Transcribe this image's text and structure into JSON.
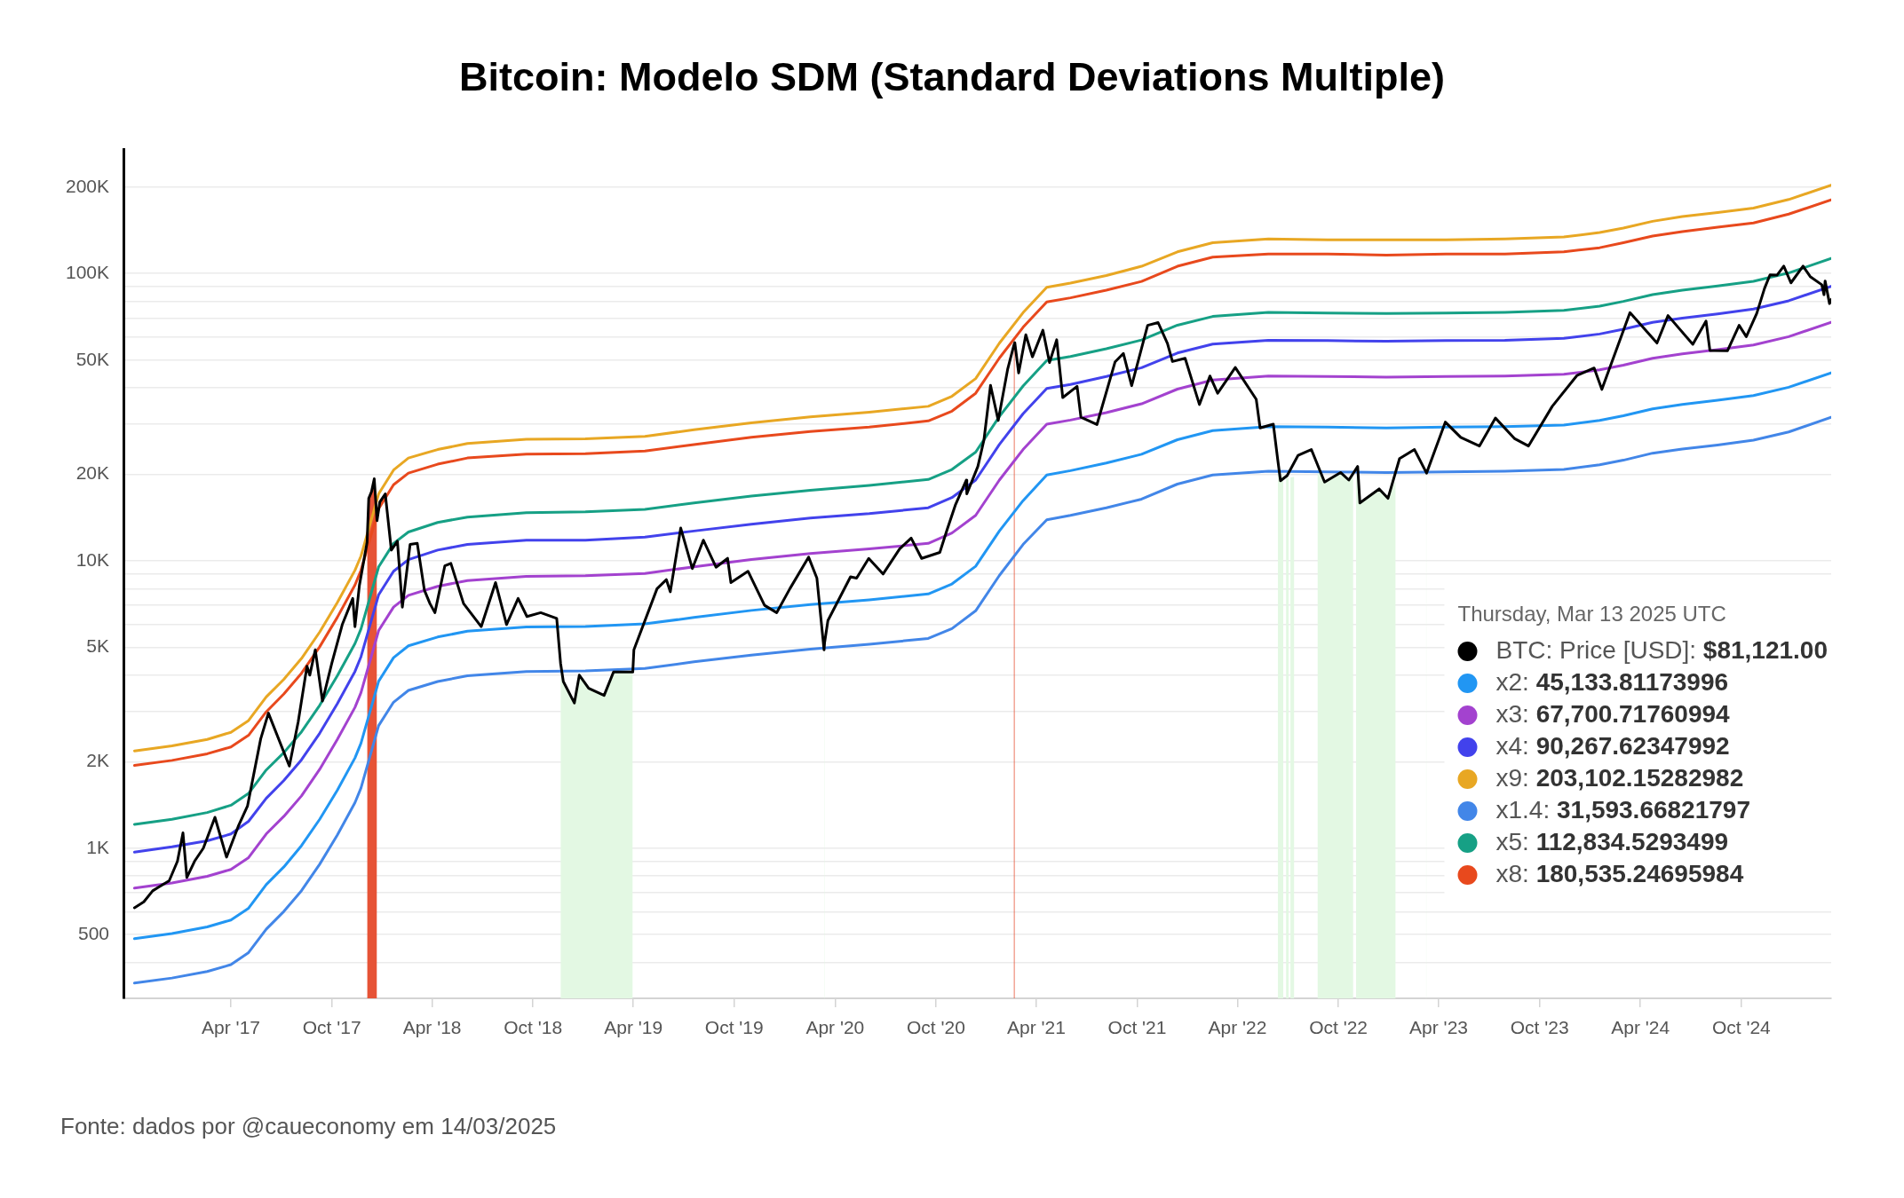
{
  "chart_data": {
    "type": "line",
    "title": "Bitcoin: Modelo SDM (Standard Deviations Multiple)",
    "annotations": [
      "Fonte: dados por @caueconomy em 14/03/2025"
    ],
    "legend_title": "Thursday, Mar 13 2025 UTC",
    "legend": "bottom right",
    "log": "y",
    "grid": "y",
    "marker": "none",
    "xlim": [
      "2016-09-18",
      "2025-03-13"
    ],
    "xticks": [
      {
        "value": "2017-04-01",
        "label": "Apr '17"
      },
      {
        "value": "2017-10-01",
        "label": "Oct '17"
      },
      {
        "value": "2018-04-01",
        "label": "Apr '18"
      },
      {
        "value": "2018-10-01",
        "label": "Oct '18"
      },
      {
        "value": "2019-04-01",
        "label": "Apr '19"
      },
      {
        "value": "2019-10-01",
        "label": "Oct '19"
      },
      {
        "value": "2020-04-01",
        "label": "Apr '20"
      },
      {
        "value": "2020-10-01",
        "label": "Oct '20"
      },
      {
        "value": "2021-04-01",
        "label": "Apr '21"
      },
      {
        "value": "2021-10-01",
        "label": "Oct '21"
      },
      {
        "value": "2022-04-01",
        "label": "Apr '22"
      },
      {
        "value": "2022-10-01",
        "label": "Oct '22"
      },
      {
        "value": "2023-04-01",
        "label": "Apr '23"
      },
      {
        "value": "2023-10-01",
        "label": "Oct '23"
      },
      {
        "value": "2024-04-01",
        "label": "Apr '24"
      },
      {
        "value": "2024-10-01",
        "label": "Oct '24"
      }
    ],
    "ylim": [
      300,
      270000
    ],
    "yticks": [
      {
        "value": 400,
        "label": null
      },
      500,
      {
        "value": 600,
        "label": null
      },
      {
        "value": 700,
        "label": null
      },
      {
        "value": 800,
        "label": null
      },
      {
        "value": 900,
        "label": null
      },
      {
        "value": 1000,
        "label": "1K"
      },
      {
        "value": 2000,
        "label": "2K"
      },
      {
        "value": 3000,
        "label": null
      },
      {
        "value": 4000,
        "label": null
      },
      {
        "value": 5000,
        "label": "5K"
      },
      {
        "value": 6000,
        "label": null
      },
      {
        "value": 7000,
        "label": null
      },
      {
        "value": 8000,
        "label": null
      },
      {
        "value": 9000,
        "label": null
      },
      {
        "value": 10000,
        "label": "10K"
      },
      {
        "value": 20000,
        "label": "20K"
      },
      {
        "value": 30000,
        "label": null
      },
      {
        "value": 40000,
        "label": null
      },
      {
        "value": 50000,
        "label": "50K"
      },
      {
        "value": 60000,
        "label": null
      },
      {
        "value": 70000,
        "label": null
      },
      {
        "value": 80000,
        "label": null
      },
      {
        "value": 90000,
        "label": null
      },
      {
        "value": 100000,
        "label": "100K"
      },
      {
        "value": 200000,
        "label": "200K"
      }
    ],
    "x": [
      "2016-10-08",
      "2016-12-15",
      "2017-02-17",
      "2017-04-01",
      "2017-05-03",
      "2017-06-04",
      "2017-07-06",
      "2017-08-07",
      "2017-09-09",
      "2017-10-11",
      "2017-11-12",
      "2017-11-23",
      "2017-12-25",
      "2018-01-21",
      "2018-02-17",
      "2018-04-11",
      "2018-06-04",
      "2018-09-19",
      "2019-01-04",
      "2019-04-22",
      "2019-07-20",
      "2019-11-01",
      "2020-02-16",
      "2020-06-02",
      "2020-09-17",
      "2020-10-30",
      "2020-12-12",
      "2021-01-24",
      "2021-03-08",
      "2021-04-20",
      "2021-06-02",
      "2021-08-06",
      "2021-10-09",
      "2021-12-13",
      "2022-02-15",
      "2022-05-27",
      "2022-09-11",
      "2022-12-27",
      "2023-04-14",
      "2023-07-30",
      "2023-11-14",
      "2024-01-18",
      "2024-03-01",
      "2024-04-23",
      "2024-06-16",
      "2024-08-19",
      "2024-10-23",
      "2024-12-26",
      "2025-03-13"
    ],
    "series": [
      {
        "name": "BTC: Price [USD]: $81,121.00",
        "color": "#000000",
        "x": [
          "2016-10-08",
          "2016-10-25",
          "2016-11-10",
          "2016-11-20",
          "2016-12-10",
          "2016-12-25",
          "2017-01-04",
          "2017-01-11",
          "2017-01-25",
          "2017-02-10",
          "2017-03-03",
          "2017-03-24",
          "2017-04-15",
          "2017-05-01",
          "2017-05-25",
          "2017-06-08",
          "2017-07-16",
          "2017-08-01",
          "2017-08-17",
          "2017-08-22",
          "2017-09-01",
          "2017-09-14",
          "2017-10-01",
          "2017-10-20",
          "2017-11-08",
          "2017-11-12",
          "2017-11-20",
          "2017-12-04",
          "2017-12-07",
          "2017-12-12",
          "2017-12-17",
          "2017-12-22",
          "2017-12-27",
          "2018-01-06",
          "2018-01-17",
          "2018-01-28",
          "2018-02-06",
          "2018-02-20",
          "2018-03-05",
          "2018-03-18",
          "2018-03-28",
          "2018-04-06",
          "2018-04-24",
          "2018-05-05",
          "2018-05-28",
          "2018-06-29",
          "2018-07-25",
          "2018-08-14",
          "2018-09-04",
          "2018-09-20",
          "2018-10-15",
          "2018-11-13",
          "2018-11-20",
          "2018-11-25",
          "2018-12-15",
          "2018-12-24",
          "2019-01-10",
          "2019-02-07",
          "2019-02-24",
          "2019-03-31",
          "2019-04-02",
          "2019-05-14",
          "2019-05-31",
          "2019-06-07",
          "2019-06-26",
          "2019-07-17",
          "2019-08-06",
          "2019-08-29",
          "2019-09-19",
          "2019-09-25",
          "2019-10-26",
          "2019-11-25",
          "2019-12-17",
          "2020-01-10",
          "2020-02-13",
          "2020-02-28",
          "2020-03-12",
          "2020-03-13",
          "2020-03-19",
          "2020-04-29",
          "2020-05-10",
          "2020-06-01",
          "2020-06-27",
          "2020-07-27",
          "2020-08-17",
          "2020-09-05",
          "2020-10-08",
          "2020-10-21",
          "2020-11-05",
          "2020-11-25",
          "2020-11-26",
          "2020-12-16",
          "2020-12-27",
          "2021-01-08",
          "2021-01-22",
          "2021-02-08",
          "2021-02-19",
          "2021-02-21",
          "2021-02-28",
          "2021-03-13",
          "2021-03-25",
          "2021-04-13",
          "2021-04-25",
          "2021-05-08",
          "2021-05-19",
          "2021-06-14",
          "2021-06-21",
          "2021-07-20",
          "2021-08-22",
          "2021-09-06",
          "2021-09-21",
          "2021-10-20",
          "2021-11-08",
          "2021-11-25",
          "2021-12-04",
          "2021-12-27",
          "2022-01-22",
          "2022-02-10",
          "2022-02-24",
          "2022-03-28",
          "2022-05-05",
          "2022-05-12",
          "2022-06-05",
          "2022-06-13",
          "2022-06-18",
          "2022-06-30",
          "2022-07-20",
          "2022-08-13",
          "2022-09-06",
          "2022-10-05",
          "2022-10-20",
          "2022-11-05",
          "2022-11-09",
          "2022-12-14",
          "2022-12-30",
          "2023-01-20",
          "2023-02-16",
          "2023-03-10",
          "2023-04-13",
          "2023-05-11",
          "2023-06-14",
          "2023-07-13",
          "2023-08-17",
          "2023-09-11",
          "2023-10-24",
          "2023-12-08",
          "2024-01-08",
          "2024-01-22",
          "2024-03-13",
          "2024-05-01",
          "2024-05-21",
          "2024-07-05",
          "2024-07-29",
          "2024-08-05",
          "2024-09-06",
          "2024-09-27",
          "2024-10-10",
          "2024-10-29",
          "2024-11-12",
          "2024-11-22",
          "2024-12-05",
          "2024-12-17",
          "2024-12-30",
          "2025-01-21",
          "2025-02-03",
          "2025-02-24",
          "2025-02-28",
          "2025-03-02",
          "2025-03-10",
          "2025-03-13"
        ],
        "values": [
          620,
          650,
          710,
          730,
          770,
          900,
          1130,
          790,
          900,
          1000,
          1280,
          930,
          1200,
          1400,
          2400,
          2950,
          1930,
          2750,
          4300,
          4000,
          4900,
          3250,
          4400,
          6000,
          7400,
          5900,
          8200,
          11600,
          16500,
          17400,
          19300,
          13800,
          16000,
          17100,
          10900,
          11700,
          6900,
          11400,
          11500,
          7900,
          7100,
          6600,
          9600,
          9800,
          7100,
          5900,
          8400,
          6000,
          7400,
          6400,
          6600,
          6300,
          4400,
          3800,
          3200,
          4000,
          3600,
          3400,
          4100,
          4100,
          4900,
          8000,
          8600,
          7800,
          13000,
          9400,
          11800,
          9500,
          10200,
          8400,
          9200,
          7000,
          6600,
          8000,
          10300,
          8700,
          4900,
          5200,
          6200,
          8800,
          8700,
          10200,
          9000,
          11000,
          12000,
          10200,
          10700,
          12800,
          15600,
          19100,
          17100,
          21300,
          26300,
          40800,
          30800,
          46400,
          56000,
          57500,
          45100,
          61200,
          51300,
          63500,
          49000,
          58800,
          37000,
          40500,
          31600,
          29800,
          49300,
          52700,
          40700,
          66000,
          67500,
          57100,
          49400,
          50700,
          35000,
          44000,
          38300,
          47100,
          36500,
          29000,
          29900,
          22500,
          19000,
          19800,
          23300,
          24400,
          18800,
          20300,
          19100,
          21300,
          15900,
          17800,
          16500,
          22700,
          24400,
          20200,
          30400,
          26900,
          25100,
          31400,
          26600,
          25100,
          34500,
          44200,
          46900,
          39500,
          73100,
          57300,
          71400,
          56700,
          68300,
          54000,
          53900,
          66000,
          60300,
          72700,
          88700,
          98900,
          98800,
          106100,
          92800,
          106100,
          97600,
          91400,
          84400,
          94200,
          78600,
          81121
        ]
      },
      {
        "name": "x2: 45,133.81173996",
        "color": "#2196f3",
        "values": [
          484,
          504,
          532,
          562,
          618,
          746,
          860,
          1020,
          1260,
          1590,
          2060,
          2320,
          3810,
          4600,
          5060,
          5430,
          5690,
          5890,
          5910,
          6030,
          6350,
          6720,
          7040,
          7310,
          7670,
          8310,
          9570,
          12700,
          16200,
          19900,
          20600,
          21900,
          23500,
          26400,
          28400,
          29300,
          29200,
          29000,
          29200,
          29300,
          29700,
          30800,
          32000,
          33800,
          35000,
          36200,
          37600,
          40200,
          45133.81173996
        ]
      },
      {
        "name": "x3: 67,700.71760994",
        "color": "#a342cf",
        "values": [
          726,
          756,
          798,
          843,
          927,
          1120,
          1290,
          1520,
          1880,
          2390,
          3090,
          3480,
          5720,
          6900,
          7580,
          8150,
          8540,
          8830,
          8870,
          9040,
          9530,
          10100,
          10600,
          11000,
          11500,
          12500,
          14400,
          19100,
          24400,
          29900,
          30900,
          32800,
          35200,
          39600,
          42600,
          44000,
          43800,
          43600,
          43800,
          44000,
          44600,
          46200,
          48000,
          50700,
          52500,
          54300,
          56400,
          60300,
          67700.71760994
        ]
      },
      {
        "name": "x4: 90,267.62347992",
        "color": "#4242ec",
        "values": [
          968,
          1010,
          1060,
          1120,
          1240,
          1490,
          1720,
          2030,
          2510,
          3180,
          4120,
          4640,
          7620,
          9200,
          10100,
          10900,
          11400,
          11800,
          11800,
          12100,
          12700,
          13400,
          14100,
          14600,
          15300,
          16600,
          19100,
          25400,
          32500,
          39800,
          41100,
          43800,
          47000,
          52900,
          56800,
          58600,
          58400,
          58100,
          58400,
          58600,
          59500,
          61600,
          64000,
          67600,
          70000,
          72400,
          75200,
          80400,
          90267.62347992
        ]
      },
      {
        "name": "x9: 203,102.15282982",
        "color": "#e8a723",
        "values": [
          2180,
          2270,
          2390,
          2530,
          2780,
          3360,
          3870,
          4570,
          5650,
          7160,
          9270,
          10400,
          17100,
          20700,
          22800,
          24400,
          25600,
          26500,
          26600,
          27100,
          28600,
          30200,
          31700,
          32900,
          34500,
          37400,
          43100,
          57200,
          73100,
          89600,
          92600,
          98400,
          106000,
          119000,
          128000,
          132000,
          131000,
          131000,
          131000,
          132000,
          134000,
          139000,
          144000,
          152000,
          158000,
          163000,
          169000,
          181000,
          203102.15282982
        ]
      },
      {
        "name": "x1.4: 31,593.66821797",
        "color": "#4286e8",
        "values": [
          339,
          353,
          372,
          393,
          433,
          522,
          602,
          711,
          879,
          1110,
          1440,
          1620,
          2670,
          3220,
          3540,
          3800,
          3980,
          4120,
          4140,
          4220,
          4450,
          4700,
          4930,
          5120,
          5370,
          5810,
          6700,
          8890,
          11400,
          13900,
          14400,
          15300,
          16400,
          18500,
          19900,
          20500,
          20400,
          20300,
          20400,
          20500,
          20800,
          21600,
          22400,
          23700,
          24500,
          25300,
          26300,
          28100,
          31593.66821797
        ]
      },
      {
        "name": "x5: 112,834.5293499",
        "color": "#16a085",
        "values": [
          1210,
          1260,
          1330,
          1410,
          1550,
          1870,
          2150,
          2540,
          3140,
          3980,
          5150,
          5800,
          9530,
          11500,
          12600,
          13600,
          14200,
          14700,
          14800,
          15100,
          15900,
          16800,
          17600,
          18300,
          19200,
          20800,
          23900,
          31800,
          40600,
          49800,
          51400,
          54700,
          58700,
          66100,
          70900,
          73300,
          72900,
          72600,
          72900,
          73300,
          74400,
          77000,
          80000,
          84500,
          87500,
          90500,
          94000,
          100500,
          112834.5293499
        ]
      },
      {
        "name": "x8: 180,535.24695984",
        "color": "#e8491d",
        "values": [
          1940,
          2020,
          2130,
          2250,
          2470,
          2980,
          3440,
          4060,
          5020,
          6360,
          8240,
          9280,
          15200,
          18400,
          20200,
          21700,
          22800,
          23500,
          23600,
          24100,
          25400,
          26900,
          28200,
          29200,
          30700,
          33200,
          38300,
          50800,
          65000,
          79600,
          82300,
          87500,
          93900,
          106000,
          114000,
          117000,
          117000,
          116000,
          117000,
          117000,
          119000,
          123000,
          128000,
          135000,
          140000,
          145000,
          150000,
          161000,
          180535.24695984
        ]
      },
      {
        "type": "area",
        "color": "#e65336",
        "x": [
          "2017-12-04",
          "2017-12-07",
          "2017-12-12",
          "2017-12-17",
          "2017-12-22",
          "2019-06-01",
          "2021-02-19",
          "2021-02-21"
        ],
        "values": [
          11600,
          16500,
          17400,
          19300,
          13800,
          null,
          56000,
          57500
        ]
      },
      {
        "type": "area",
        "color": "#e3f8e3",
        "x": [
          "2018-11-20",
          "2018-11-25",
          "2018-12-15",
          "2018-12-24",
          "2019-01-10",
          "2019-02-07",
          "2019-02-24",
          "2019-03-31",
          "2019-10-01",
          "2020-03-12",
          "2020-03-13",
          "2021-01-01",
          "2022-06-13",
          "2022-06-18",
          "2022-06-23",
          "2022-06-25",
          "2022-06-28",
          "2022-07-03",
          "2022-07-05",
          "2022-07-06",
          "2022-07-13",
          "2022-07-20",
          "2022-08-24",
          "2022-09-06",
          "2022-10-05",
          "2022-10-20",
          "2022-10-28",
          "2022-10-30",
          "2022-11-02",
          "2022-11-09",
          "2022-12-14",
          "2022-12-30",
          "2023-01-13",
          "2023-02-01",
          "2023-03-09",
          "2023-03-10"
        ],
        "values": [
          4400,
          3800,
          3200,
          4000,
          3600,
          3400,
          4100,
          4100,
          null,
          4900,
          5200,
          null,
          22500,
          19000,
          20500,
          null,
          20000,
          19300,
          null,
          19500,
          19600,
          null,
          21500,
          18800,
          20300,
          19100,
          20600,
          null,
          20200,
          15900,
          17800,
          16500,
          19000,
          null,
          20400,
          20200
        ]
      }
    ]
  }
}
